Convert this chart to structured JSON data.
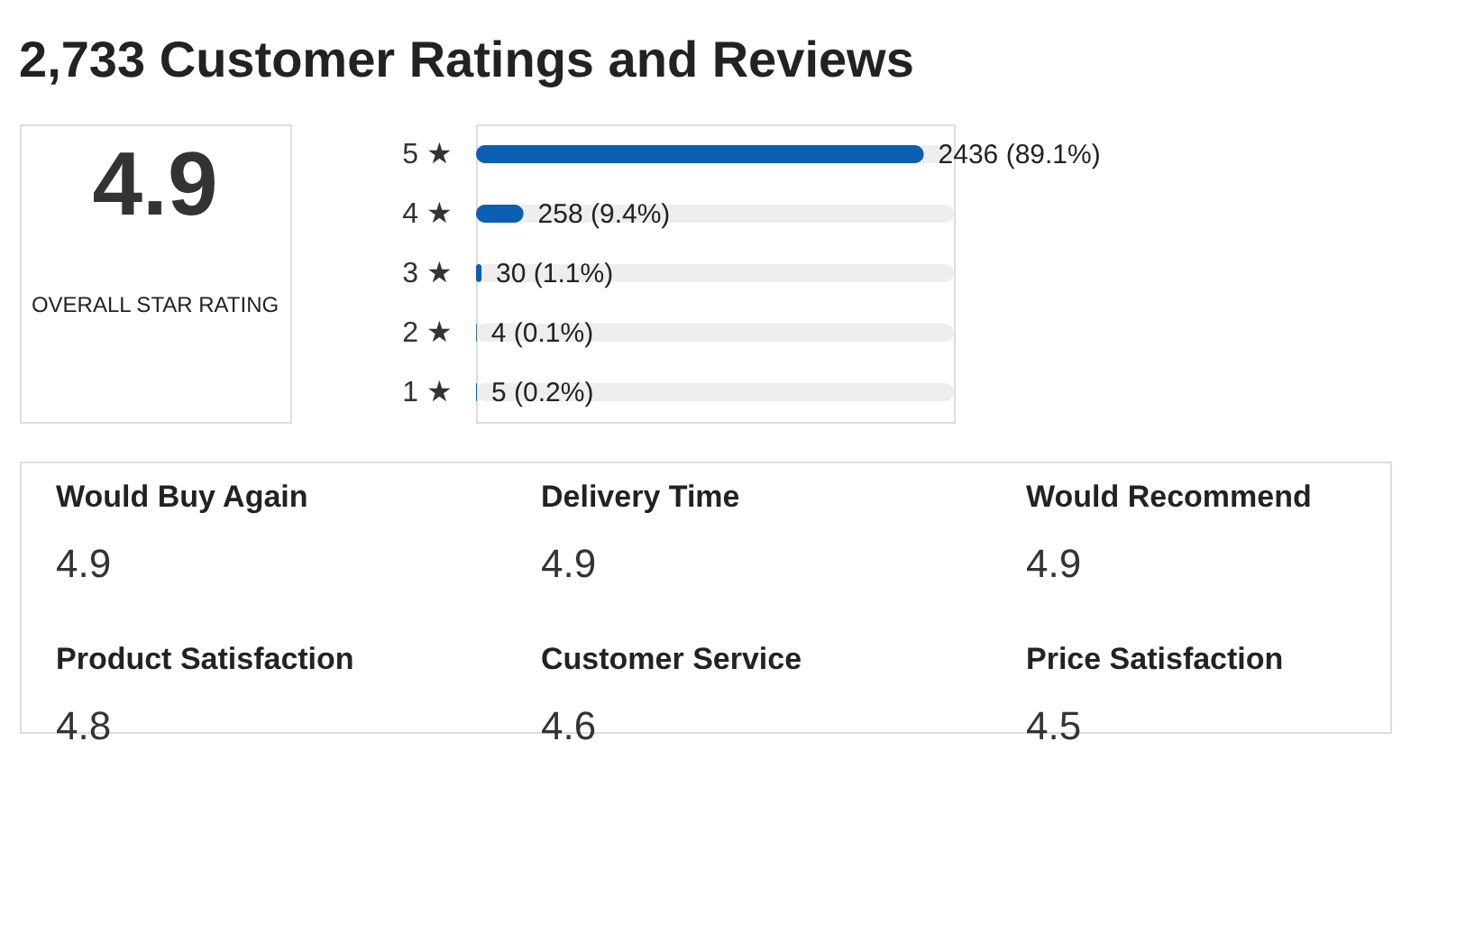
{
  "chart_data": {
    "type": "bar",
    "orientation": "horizontal",
    "title": "2,733 Customer Ratings and Reviews",
    "categories": [
      "5 ★",
      "4 ★",
      "3 ★",
      "2 ★",
      "1 ★"
    ],
    "values": [
      2436,
      258,
      30,
      4,
      5
    ],
    "color": "#0b5fb3",
    "tick_labels": "y",
    "value_labels": [
      "2436 (89.1%)",
      "258 (9.4%)",
      "30 (1.1%)",
      "4 (0.1%)",
      "5 (0.2%)"
    ],
    "annotations": [
      "4.9",
      "OVERALL STAR RATING",
      "Would Buy Again",
      "4.9",
      "Delivery Time",
      "4.9",
      "Would Recommend",
      "4.9",
      "Product Satisfaction",
      "4.8",
      "Customer Service",
      "4.6",
      "Price Satisfaction",
      "4.5"
    ]
  }
}
